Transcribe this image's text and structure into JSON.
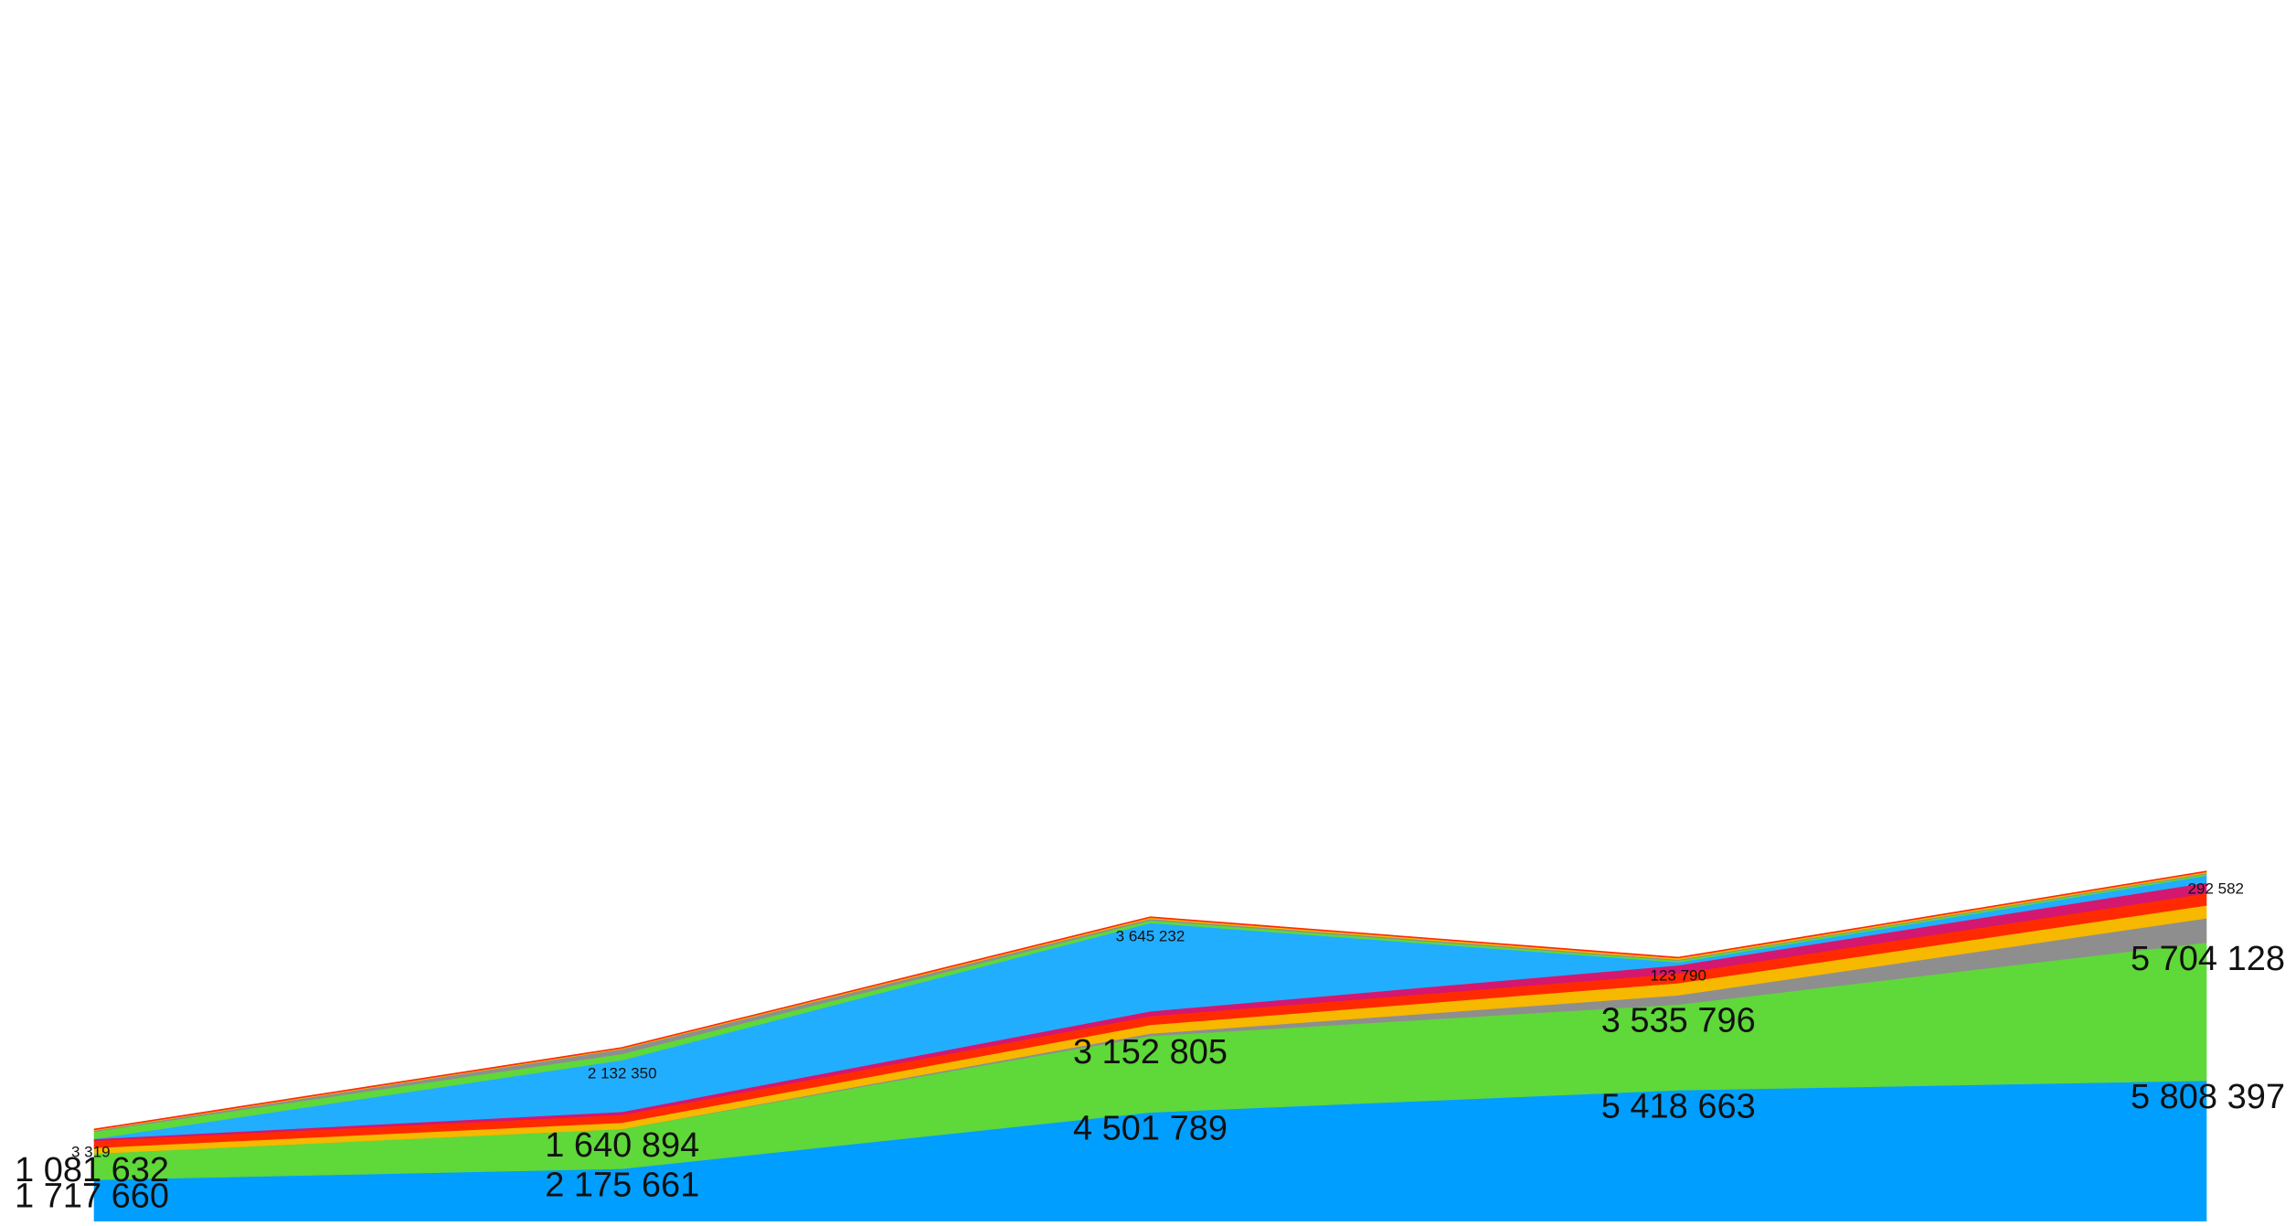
{
  "chart_data": {
    "type": "area",
    "stacked": true,
    "title": "",
    "xlabel": "",
    "ylabel": "",
    "legend": "none",
    "grid": false,
    "axes_visible": false,
    "x": [
      "1",
      "2",
      "3",
      "4",
      "5"
    ],
    "series": [
      {
        "color": "#009FFF",
        "values": [
          1717660,
          2175661,
          4501789,
          5418663,
          5808397
        ]
      },
      {
        "color": "#5FD839",
        "values": [
          1081632,
          1640894,
          3152805,
          3535796,
          5704128
        ]
      },
      {
        "color": "#8E8E8E",
        "values": [
          0,
          0,
          100000,
          380000,
          1000000
        ]
      },
      {
        "color": "#F7B800",
        "values": [
          240000,
          260000,
          360000,
          500000,
          530000
        ]
      },
      {
        "color": "#FF2A00",
        "values": [
          290000,
          320000,
          360000,
          400000,
          500000
        ]
      },
      {
        "color": "#D4176F",
        "values": [
          75000,
          130000,
          200000,
          340000,
          440000
        ]
      },
      {
        "color": "#22AEFF",
        "values": [
          3319,
          2132350,
          3645232,
          123790,
          292582
        ]
      },
      {
        "color": "#5FD839",
        "values": [
          300000,
          260000,
          110000,
          70000,
          60000
        ]
      },
      {
        "color": "#8E8E8E",
        "values": [
          40000,
          200000,
          60000,
          40000,
          40000
        ]
      },
      {
        "color": "#F7B800",
        "values": [
          30000,
          30000,
          50000,
          60000,
          50000
        ]
      },
      {
        "color": "#FF2A00",
        "values": [
          40000,
          40000,
          40000,
          40000,
          40000
        ]
      }
    ],
    "data_labels": [
      {
        "series": 0,
        "point": 0,
        "text": "1 717 660",
        "size": "large"
      },
      {
        "series": 0,
        "point": 1,
        "text": "2 175 661",
        "size": "large"
      },
      {
        "series": 0,
        "point": 2,
        "text": "4 501 789",
        "size": "large"
      },
      {
        "series": 0,
        "point": 3,
        "text": "5 418 663",
        "size": "large"
      },
      {
        "series": 0,
        "point": 4,
        "text": "5 808 397",
        "size": "large"
      },
      {
        "series": 1,
        "point": 0,
        "text": "1 081 632",
        "size": "large"
      },
      {
        "series": 1,
        "point": 1,
        "text": "1 640 894",
        "size": "large"
      },
      {
        "series": 1,
        "point": 2,
        "text": "3 152 805",
        "size": "large"
      },
      {
        "series": 1,
        "point": 3,
        "text": "3 535 796",
        "size": "large"
      },
      {
        "series": 1,
        "point": 4,
        "text": "5 704 128",
        "size": "large"
      },
      {
        "series": 6,
        "point": 0,
        "text": "3 319",
        "size": "small"
      },
      {
        "series": 6,
        "point": 1,
        "text": "2 132 350",
        "size": "small"
      },
      {
        "series": 6,
        "point": 2,
        "text": "3 645 232",
        "size": "small"
      },
      {
        "series": 6,
        "point": 3,
        "text": "123 790",
        "size": "small"
      },
      {
        "series": 6,
        "point": 4,
        "text": "292 582",
        "size": "small"
      }
    ]
  }
}
